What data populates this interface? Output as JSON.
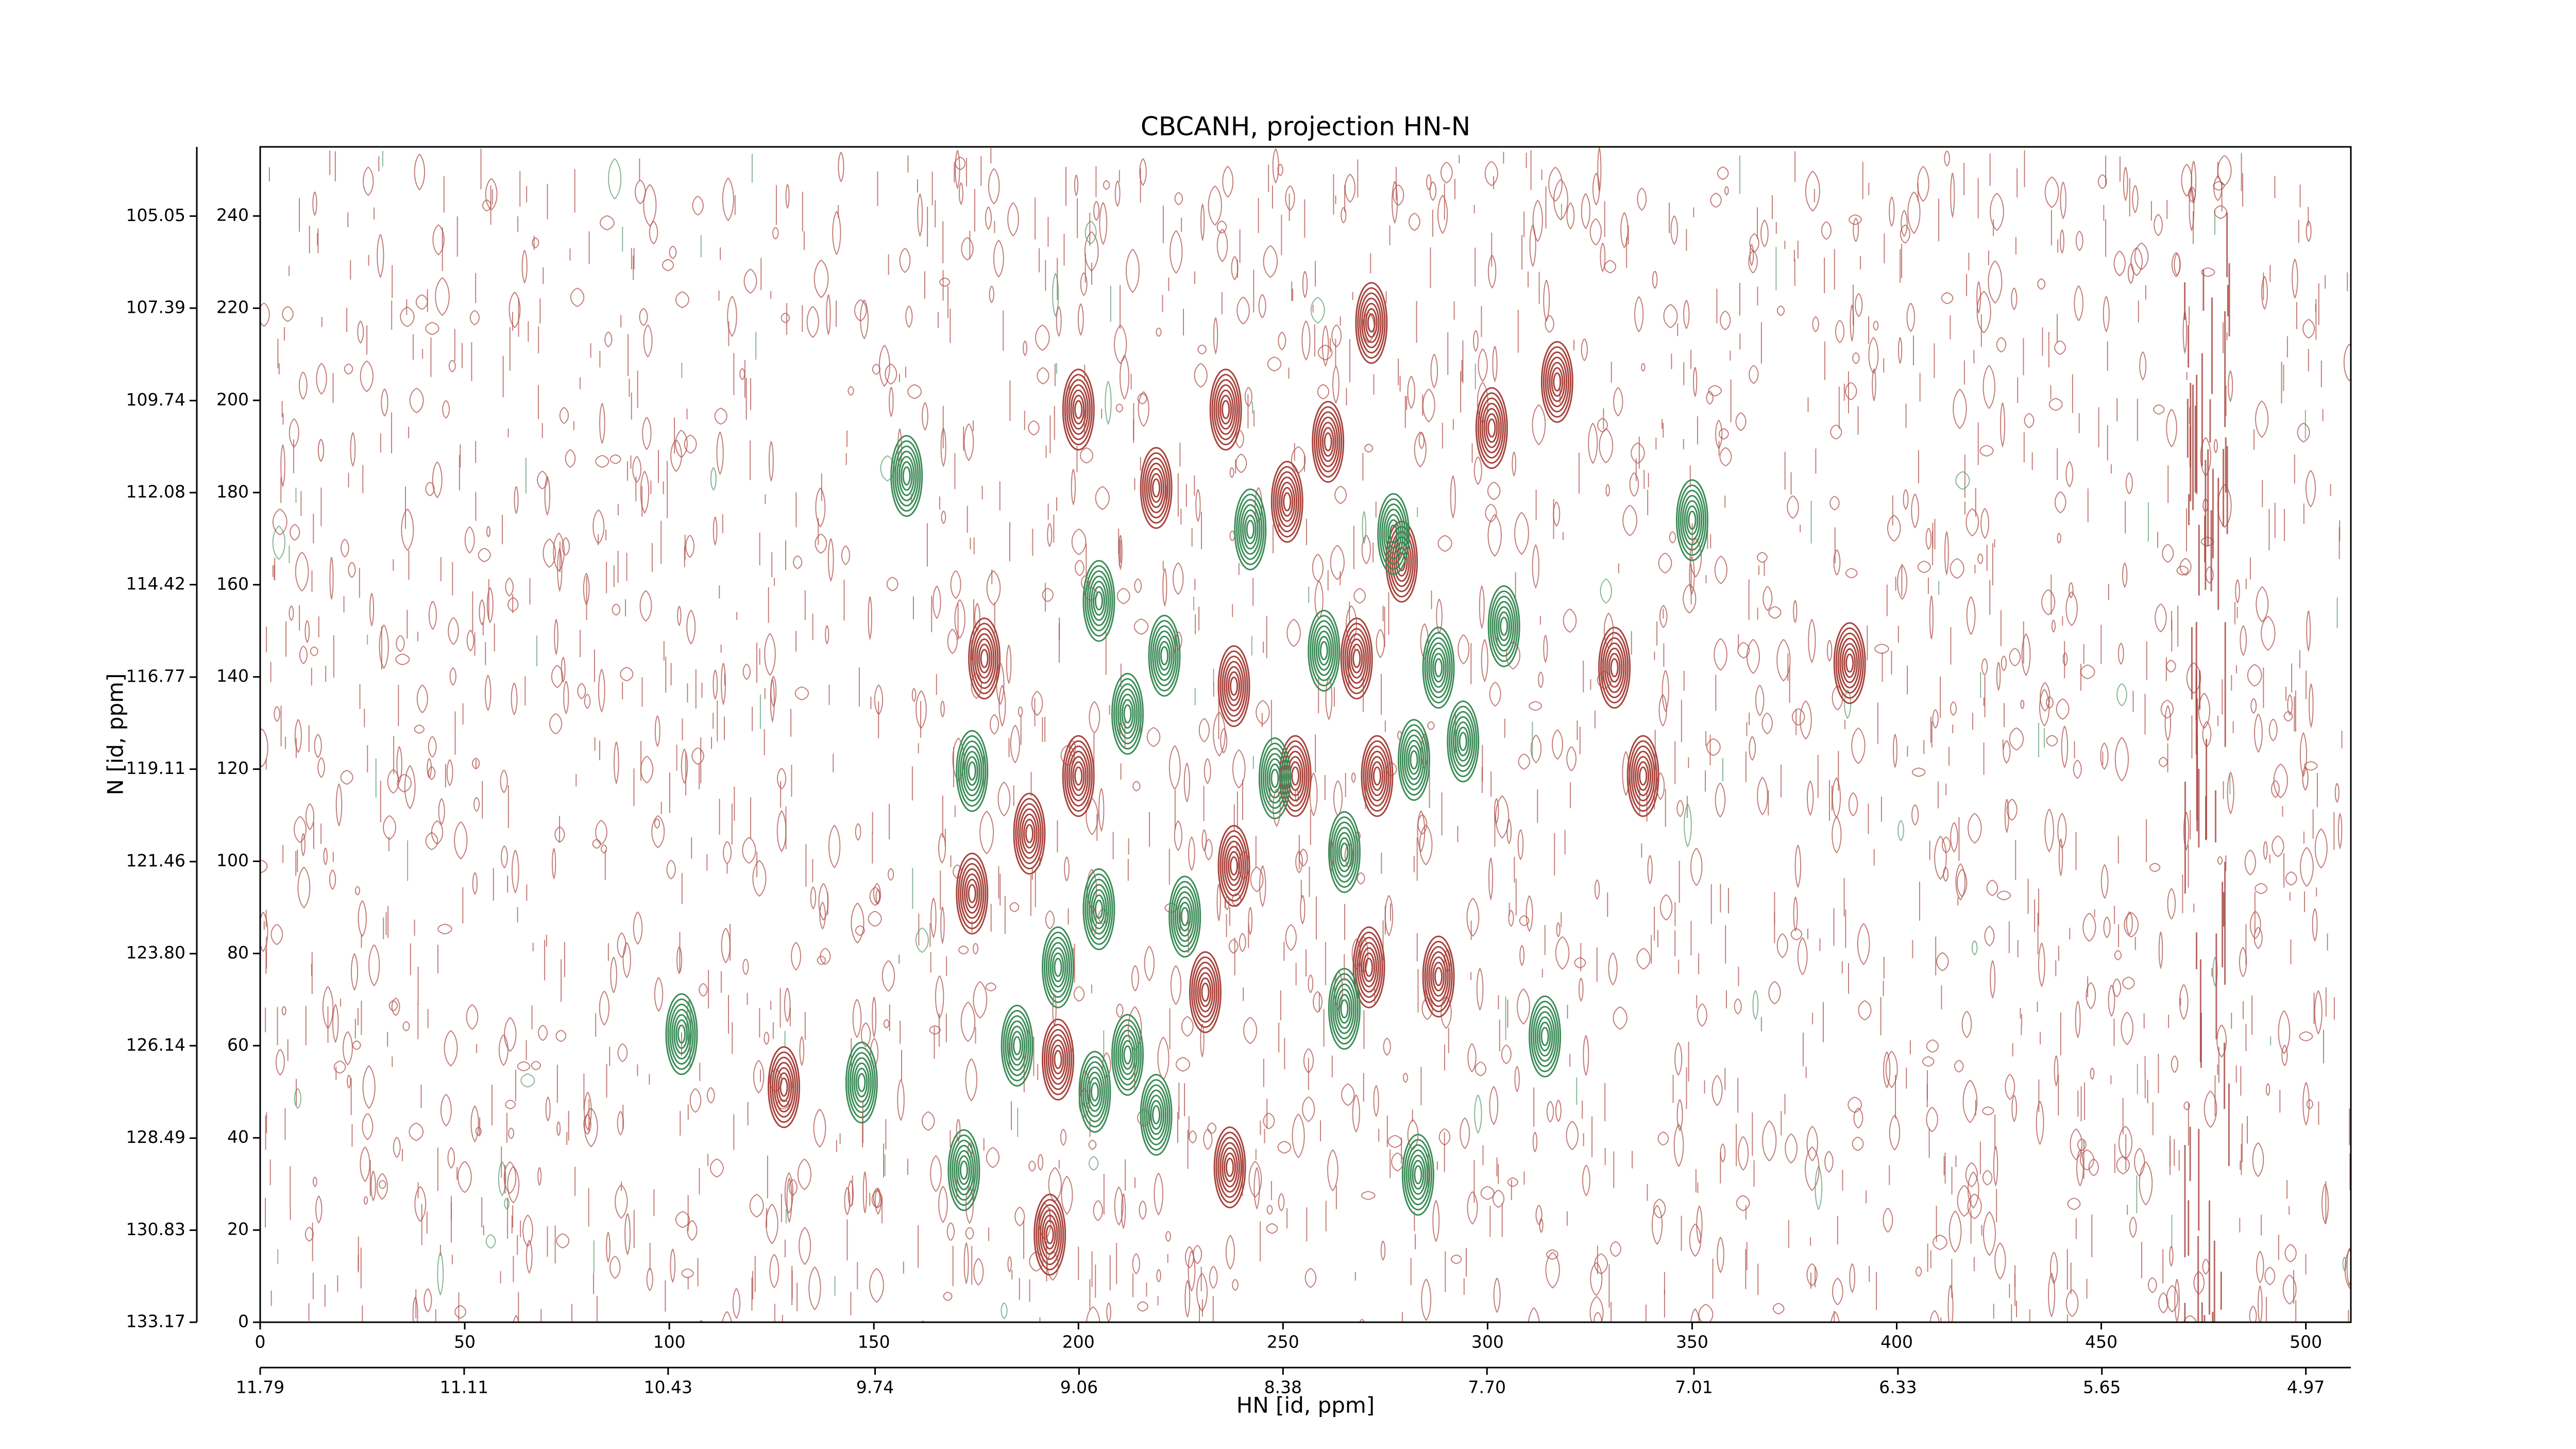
{
  "chart_data": {
    "type": "scatter",
    "title": "CBCANH, projection HN-N",
    "xlabel": "HN [id, ppm]",
    "ylabel": "N [id, ppm]",
    "xlim": [
      0,
      511
    ],
    "xticks": [
      0,
      50,
      100,
      150,
      200,
      250,
      300,
      350,
      400,
      450,
      500
    ],
    "x2lim": [
      11.79,
      4.82
    ],
    "x2ticks": [
      11.79,
      11.11,
      10.43,
      9.74,
      9.06,
      8.38,
      {
        "value": 7.7,
        "label": "7.70"
      },
      7.01,
      6.33,
      5.65,
      4.97
    ],
    "ylim": [
      0,
      255
    ],
    "yticks": [
      0,
      20,
      40,
      60,
      80,
      100,
      120,
      140,
      160,
      180,
      200,
      220,
      240
    ],
    "y2lim": [
      133.17,
      103.29
    ],
    "y2ticks": [
      133.17,
      130.83,
      128.49,
      126.14,
      {
        "value": 123.8,
        "label": "123.80"
      },
      121.46,
      119.11,
      116.77,
      114.42,
      112.08,
      109.74,
      107.39,
      105.05
    ],
    "series": [
      {
        "color": "#a8443d",
        "x": [
          271.6,
          317,
          200,
          236,
          301,
          261,
          219,
          251,
          279,
          177,
          238,
          268,
          331,
          388.5,
          338,
          200,
          238,
          188,
          174,
          231,
          271,
          288,
          195,
          193,
          128,
          237,
          253,
          273
        ],
        "values": [
          216.8,
          204,
          198,
          198,
          194,
          191,
          181,
          178,
          165,
          144,
          138,
          144,
          142,
          143,
          118.5,
          118.5,
          99,
          106,
          93,
          71.6,
          77,
          75,
          57,
          19,
          51,
          33.6,
          118.5,
          118.5
        ]
      },
      {
        "color": "#3c8c58",
        "x": [
          158,
          205,
          242,
          221,
          260,
          288,
          304,
          350,
          277,
          212,
          174,
          248,
          282,
          294,
          265,
          205,
          226,
          195,
          265,
          212,
          185,
          314,
          172,
          147,
          283,
          103,
          204,
          219
        ],
        "values": [
          183.6,
          156.5,
          172,
          144.6,
          145.7,
          142,
          151,
          174,
          171,
          132,
          119.6,
          118,
          122,
          126,
          102,
          89.6,
          88,
          77,
          68,
          58,
          60,
          62,
          33,
          52,
          32,
          62.5,
          50,
          45
        ]
      }
    ]
  }
}
